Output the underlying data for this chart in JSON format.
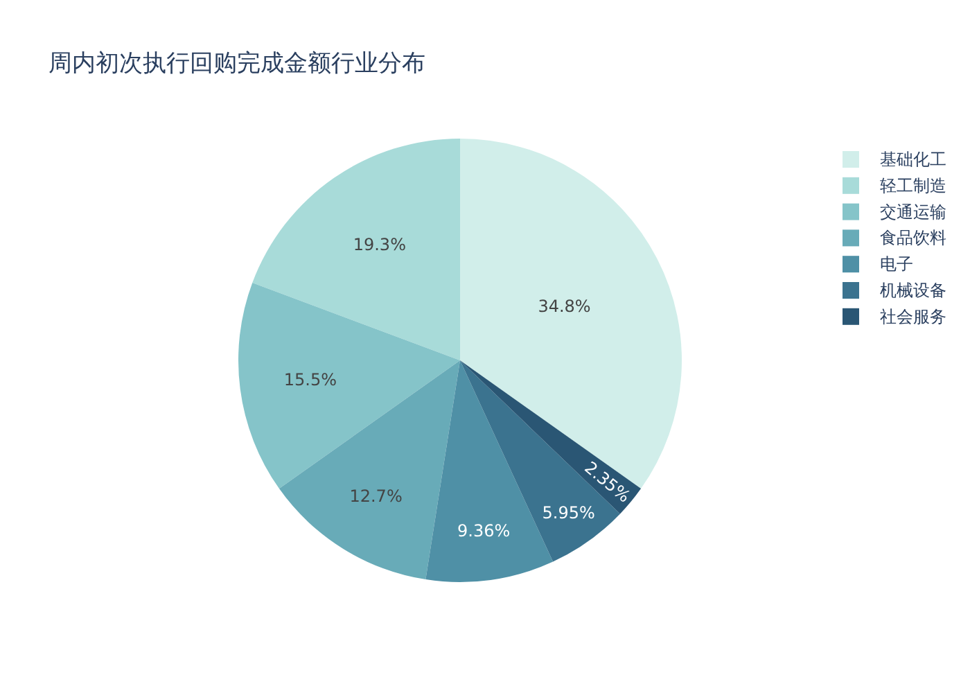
{
  "chart_data": {
    "type": "pie",
    "title": "周内初次执行回购完成金额行业分布",
    "categories": [
      "基础化工",
      "轻工制造",
      "交通运输",
      "食品饮料",
      "电子",
      "机械设备",
      "社会服务"
    ],
    "values": [
      34.8,
      19.3,
      15.5,
      12.7,
      9.36,
      5.95,
      2.35
    ],
    "colors": [
      "#d1eeea",
      "#a8dbd9",
      "#85c4c9",
      "#68abb8",
      "#4f90a6",
      "#3b738f",
      "#2a5674"
    ],
    "value_labels": [
      "34.8%",
      "19.3%",
      "15.5%",
      "12.7%",
      "9.36%",
      "5.95%",
      "2.35%"
    ],
    "legend": "top right"
  }
}
